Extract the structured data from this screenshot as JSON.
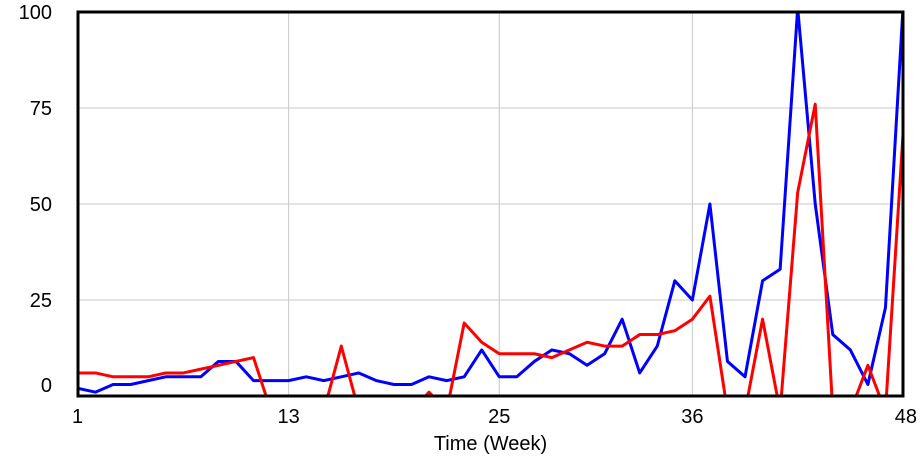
{
  "chart_data": {
    "type": "line",
    "title": "",
    "xlabel": "Time (Week)",
    "ylabel": "",
    "xlim": [
      1,
      48
    ],
    "ylim": [
      0,
      100
    ],
    "x_ticks": [
      1,
      13,
      25,
      36,
      48
    ],
    "y_ticks": [
      0,
      25,
      50,
      75,
      100
    ],
    "grid": true,
    "x": [
      1,
      2,
      3,
      4,
      5,
      6,
      7,
      8,
      9,
      10,
      11,
      12,
      13,
      14,
      15,
      16,
      17,
      18,
      19,
      20,
      21,
      22,
      23,
      24,
      25,
      26,
      27,
      28,
      29,
      30,
      31,
      32,
      33,
      34,
      35,
      36,
      37,
      38,
      39,
      40,
      41,
      42,
      43,
      44,
      45,
      46,
      47,
      48
    ],
    "series": [
      {
        "color": "#0000ff",
        "values": [
          2,
          1,
          3,
          3,
          4,
          5,
          5,
          5,
          9,
          9,
          4,
          4,
          4,
          5,
          4,
          5,
          6,
          4,
          3,
          3,
          5,
          4,
          5,
          12,
          5,
          5,
          9,
          12,
          11,
          8,
          11,
          20,
          6,
          13,
          30,
          25,
          50,
          9,
          5,
          30,
          33,
          101,
          50,
          16,
          12,
          3,
          23,
          101
        ]
      },
      {
        "color": "#ff0000",
        "values": [
          6,
          6,
          5,
          5,
          5,
          6,
          6,
          7,
          8,
          9,
          10,
          -4,
          -4,
          -4,
          -4,
          13,
          -4,
          -4,
          -4,
          -4,
          1,
          -4,
          19,
          14,
          11,
          11,
          11,
          10,
          12,
          14,
          13,
          13,
          16,
          16,
          17,
          20,
          26,
          -4,
          -4,
          20,
          -4,
          53,
          76,
          -4,
          -4,
          8,
          -4,
          68
        ]
      }
    ]
  }
}
